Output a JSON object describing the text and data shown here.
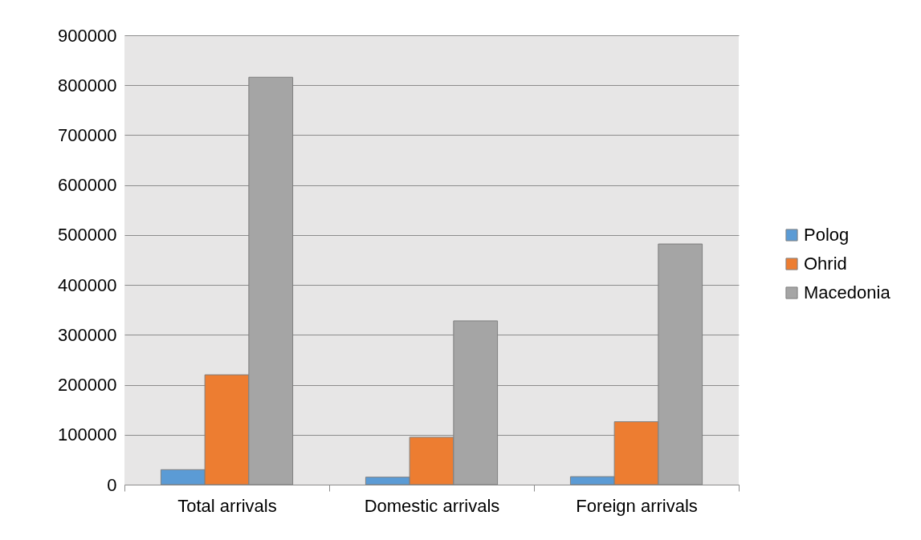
{
  "chart_data": {
    "type": "bar",
    "categories": [
      "Total arrivals",
      "Domestic arrivals",
      "Foreign arrivals"
    ],
    "series": [
      {
        "name": "Polog",
        "color": "#5b9bd5",
        "values": [
          30000,
          15000,
          16000
        ]
      },
      {
        "name": "Ohrid",
        "color": "#ed7d31",
        "values": [
          220000,
          95000,
          126000
        ]
      },
      {
        "name": "Macedonia",
        "color": "#a5a5a5",
        "values": [
          816000,
          328000,
          482000
        ]
      }
    ],
    "ylim": [
      0,
      900000
    ],
    "yticks": [
      0,
      100000,
      200000,
      300000,
      400000,
      500000,
      600000,
      700000,
      800000,
      900000
    ],
    "grid": "y",
    "legend": "right"
  }
}
